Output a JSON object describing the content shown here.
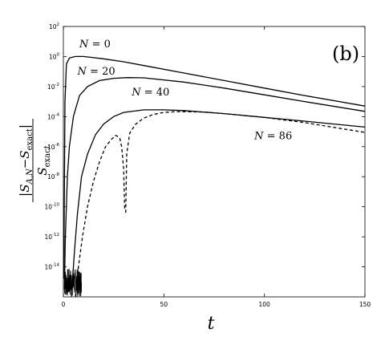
{
  "chart_data": {
    "type": "line",
    "panel_label": "(b)",
    "xlabel": "t",
    "ylabel": {
      "numerator": "|S_{A,N} − S_exact|",
      "numerator_parts": [
        "S",
        "A,N",
        "−",
        "S",
        "exact"
      ],
      "denominator_parts": [
        "S",
        "exact"
      ]
    },
    "xlim": [
      0,
      150
    ],
    "ylim_log10": [
      -16,
      2
    ],
    "yscale": "log",
    "grid": false,
    "x_ticks": [
      0,
      50,
      100,
      150
    ],
    "y_tick_exponents": [
      2,
      0,
      -2,
      -4,
      -6,
      -8,
      -10,
      -12,
      -14
    ],
    "y_tick_base": "10",
    "series": [
      {
        "name": "N = 0",
        "style": "solid",
        "points_log10": [
          [
            0.2,
            -14.8
          ],
          [
            0.8,
            -3
          ],
          [
            1.5,
            -0.5
          ],
          [
            3,
            -0.1
          ],
          [
            6,
            0
          ],
          [
            10,
            0
          ],
          [
            20,
            -0.15
          ],
          [
            30,
            -0.35
          ],
          [
            40,
            -0.6
          ],
          [
            60,
            -1.1
          ],
          [
            80,
            -1.6
          ],
          [
            100,
            -2.1
          ],
          [
            120,
            -2.6
          ],
          [
            150,
            -3.3
          ]
        ]
      },
      {
        "name": "N = 20",
        "style": "solid",
        "points_log10": [
          [
            0.5,
            -15.5
          ],
          [
            1,
            -12
          ],
          [
            2,
            -8
          ],
          [
            3,
            -6
          ],
          [
            5,
            -4
          ],
          [
            8,
            -2.6
          ],
          [
            12,
            -2
          ],
          [
            18,
            -1.6
          ],
          [
            25,
            -1.45
          ],
          [
            32,
            -1.4
          ],
          [
            40,
            -1.42
          ],
          [
            60,
            -1.7
          ],
          [
            80,
            -2.1
          ],
          [
            100,
            -2.55
          ],
          [
            120,
            -3
          ],
          [
            150,
            -3.65
          ]
        ]
      },
      {
        "name": "N = 40",
        "style": "solid",
        "points_log10": [
          [
            4,
            -16
          ],
          [
            5.5,
            -13
          ],
          [
            7,
            -10.5
          ],
          [
            9,
            -8
          ],
          [
            12,
            -6.5
          ],
          [
            16,
            -5.2
          ],
          [
            20,
            -4.5
          ],
          [
            25,
            -4
          ],
          [
            30,
            -3.72
          ],
          [
            40,
            -3.55
          ],
          [
            50,
            -3.55
          ],
          [
            60,
            -3.6
          ],
          [
            80,
            -3.8
          ],
          [
            100,
            -4.05
          ],
          [
            120,
            -4.3
          ],
          [
            150,
            -4.7
          ]
        ]
      },
      {
        "name": "N = 86",
        "style": "dashed",
        "segments_log10": [
          [
            [
              6,
              -16
            ],
            [
              7.5,
              -14
            ],
            [
              9.5,
              -12
            ],
            [
              12,
              -10
            ],
            [
              15,
              -8.3
            ],
            [
              18,
              -7
            ],
            [
              21,
              -6
            ],
            [
              24,
              -5.5
            ],
            [
              26,
              -5.25
            ],
            [
              28,
              -5.4
            ],
            [
              29,
              -6
            ],
            [
              30,
              -7.5
            ],
            [
              30.5,
              -10.2
            ]
          ],
          [
            [
              31,
              -10.4
            ],
            [
              31.5,
              -6.5
            ],
            [
              33,
              -5.1
            ],
            [
              36,
              -4.5
            ],
            [
              40,
              -4.1
            ],
            [
              45,
              -3.85
            ],
            [
              50,
              -3.72
            ],
            [
              55,
              -3.68
            ],
            [
              60,
              -3.67
            ],
            [
              70,
              -3.7
            ],
            [
              80,
              -3.8
            ],
            [
              100,
              -4.05
            ],
            [
              120,
              -4.4
            ],
            [
              150,
              -5.05
            ]
          ]
        ]
      }
    ],
    "annotations": [
      {
        "series": "N = 0",
        "prefix": "N",
        "value": "0",
        "x": 8,
        "y_log10": 0.6
      },
      {
        "series": "N = 20",
        "prefix": "N",
        "value": "20",
        "x": 7,
        "y_log10": -1.2
      },
      {
        "series": "N = 40",
        "prefix": "N",
        "value": "40",
        "x": 34,
        "y_log10": -2.6
      },
      {
        "series": "N = 86",
        "prefix": "N",
        "value": "86",
        "x": 95,
        "y_log10": -5.5
      }
    ],
    "noise_region": {
      "x_range": [
        0.5,
        9
      ],
      "y_log10_range": [
        -16,
        -14.1
      ]
    }
  }
}
